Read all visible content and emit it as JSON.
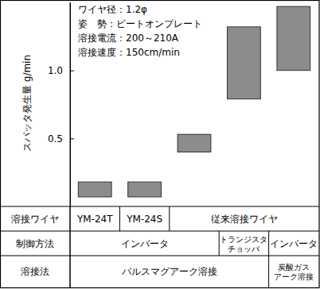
{
  "chart_data": {
    "type": "bar",
    "ylabel": "スパッタ発生量 g/min",
    "categories": [
      null,
      null,
      null,
      null,
      null
    ],
    "values": [
      [
        0.07,
        0.18
      ],
      [
        0.07,
        0.18
      ],
      [
        0.4,
        0.53
      ],
      [
        0.79,
        1.32
      ],
      [
        1.0,
        1.47
      ]
    ],
    "color": "#8c8c8c",
    "ylim": [
      0,
      1.5
    ],
    "yticks": [
      0.5,
      {
        "value": 1,
        "label": "1.0"
      }
    ],
    "annotations": [
      "ワイヤ径：1.2φ",
      "姿　勢：ビートオンプレート",
      "溶接電流：200～210A",
      "溶接速度：150cm/min"
    ]
  },
  "table": {
    "rows": [
      [
        "溶接ワイヤ",
        "YM-24T",
        "YM-24S",
        {
          "text": "従来溶接ワイヤ",
          "span": 3
        }
      ],
      [
        "制御方法",
        {
          "text": "インバータ",
          "span": 3
        },
        "トランジスタ\nチョッパ",
        "インバータ"
      ],
      [
        "溶接法",
        {
          "text": "パルスマグアーク溶接",
          "span": 4
        },
        "炭酸ガス\nアーク溶接"
      ]
    ]
  }
}
